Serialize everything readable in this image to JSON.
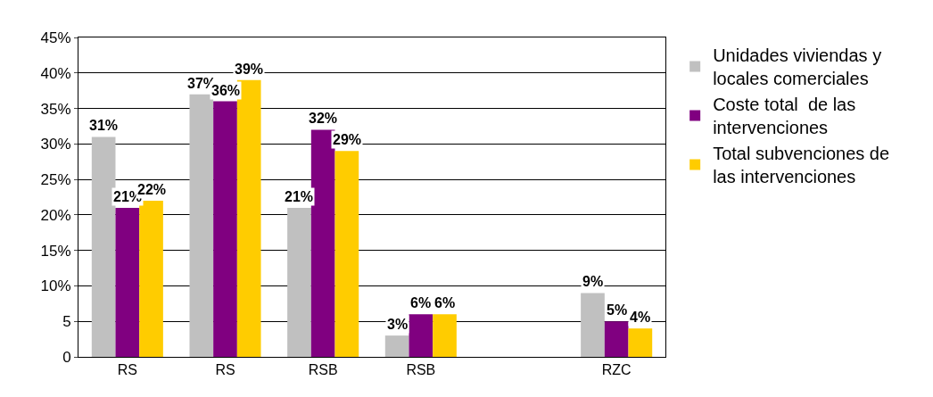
{
  "chart_data": {
    "type": "bar",
    "categories": [
      "RS",
      "RS",
      "RSB",
      "RSB",
      null,
      "RZC"
    ],
    "series": [
      {
        "name": "Unidades viviendas y locales comerciales",
        "color": "#c0c0c0",
        "values": [
          31,
          37,
          21,
          3,
          null,
          9
        ],
        "value_labels": [
          "31%",
          "37%",
          "21%",
          "3%",
          null,
          "9%"
        ]
      },
      {
        "name": "Coste total  de las intervenciones",
        "color": "#800080",
        "values": [
          21,
          36,
          32,
          6,
          null,
          5
        ],
        "value_labels": [
          "21%",
          "36%",
          "32%",
          "6%",
          null,
          "5%"
        ]
      },
      {
        "name": "Total subvenciones de las intervenciones",
        "color": "#ffcc00",
        "values": [
          22,
          39,
          29,
          6,
          null,
          4
        ],
        "value_labels": [
          "22%",
          "39%",
          "29%",
          "6%",
          null,
          "4%"
        ]
      }
    ],
    "ylim": [
      0,
      45
    ],
    "yticks": [
      {
        "value": 0,
        "label": "0"
      },
      {
        "value": 5,
        "label": "5"
      },
      {
        "value": 10,
        "label": "10%"
      },
      {
        "value": 15,
        "label": "15%"
      },
      {
        "value": 20,
        "label": "20%"
      },
      {
        "value": 25,
        "label": "25%"
      },
      {
        "value": 30,
        "label": "30%"
      },
      {
        "value": 35,
        "label": "35%"
      },
      {
        "value": 40,
        "label": "40%"
      },
      {
        "value": 45,
        "label": "45%"
      }
    ],
    "grid": "y",
    "legend": "right"
  }
}
